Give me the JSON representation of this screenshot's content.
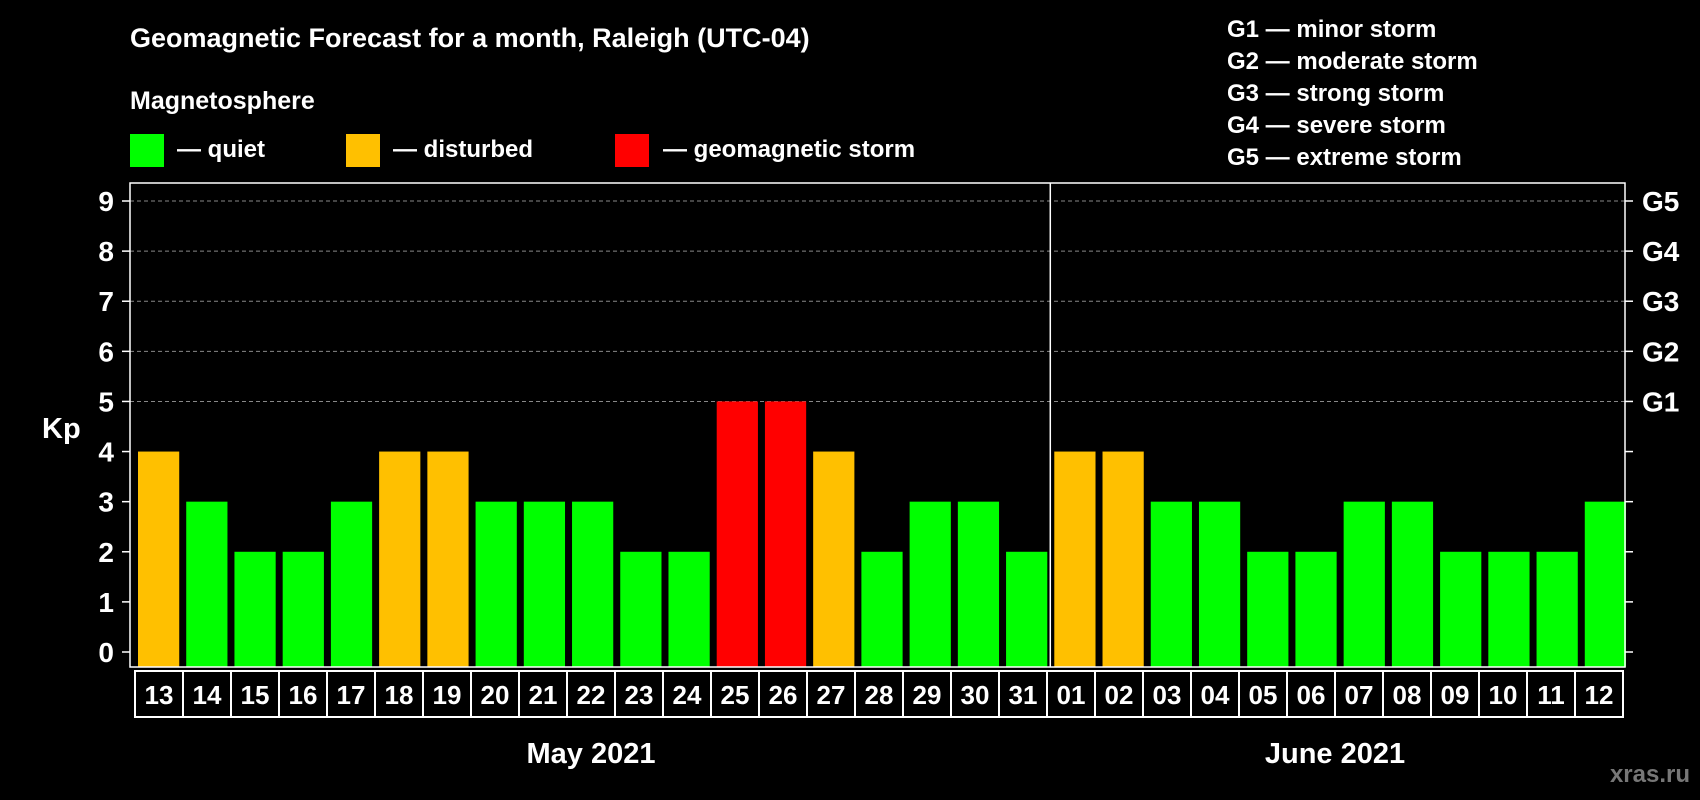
{
  "chart_data": {
    "type": "bar",
    "title": "Geomagnetic Forecast for a month, Raleigh (UTC-04)",
    "ylabel": "Kp",
    "ylim": [
      0,
      9
    ],
    "yticks": [
      "0",
      "1",
      "2",
      "3",
      "4",
      "5",
      "6",
      "7",
      "8",
      "9"
    ],
    "grid": true,
    "legend": {
      "heading": "Magnetosphere",
      "items": [
        {
          "key": "quiet",
          "label": "— quiet",
          "color": "#00ff00"
        },
        {
          "key": "disturbed",
          "label": "— disturbed",
          "color": "#ffc000"
        },
        {
          "key": "storm",
          "label": "— geomagnetic storm",
          "color": "#ff0000"
        }
      ]
    },
    "storm_scale": [
      "G1 — minor storm",
      "G2 — moderate storm",
      "G3 — strong storm",
      "G4 — severe storm",
      "G5 — extreme storm"
    ],
    "right_axis": [
      {
        "kp": 5,
        "label": "G1"
      },
      {
        "kp": 6,
        "label": "G2"
      },
      {
        "kp": 7,
        "label": "G3"
      },
      {
        "kp": 8,
        "label": "G4"
      },
      {
        "kp": 9,
        "label": "G5"
      }
    ],
    "months": [
      {
        "label": "May 2021",
        "days": [
          "13",
          "14",
          "15",
          "16",
          "17",
          "18",
          "19",
          "20",
          "21",
          "22",
          "23",
          "24",
          "25",
          "26",
          "27",
          "28",
          "29",
          "30",
          "31"
        ]
      },
      {
        "label": "June 2021",
        "days": [
          "01",
          "02",
          "03",
          "04",
          "05",
          "06",
          "07",
          "08",
          "09",
          "10",
          "11",
          "12"
        ]
      }
    ],
    "values": [
      4,
      3,
      2,
      2,
      3,
      4,
      4,
      3,
      3,
      3,
      2,
      2,
      5,
      5,
      4,
      2,
      3,
      3,
      2,
      4,
      4,
      3,
      3,
      2,
      2,
      3,
      3,
      2,
      2,
      2,
      3
    ],
    "colors": {
      "quiet": "#00ff00",
      "disturbed": "#ffc000",
      "storm": "#ff0000"
    }
  },
  "watermark": "xras.ru"
}
